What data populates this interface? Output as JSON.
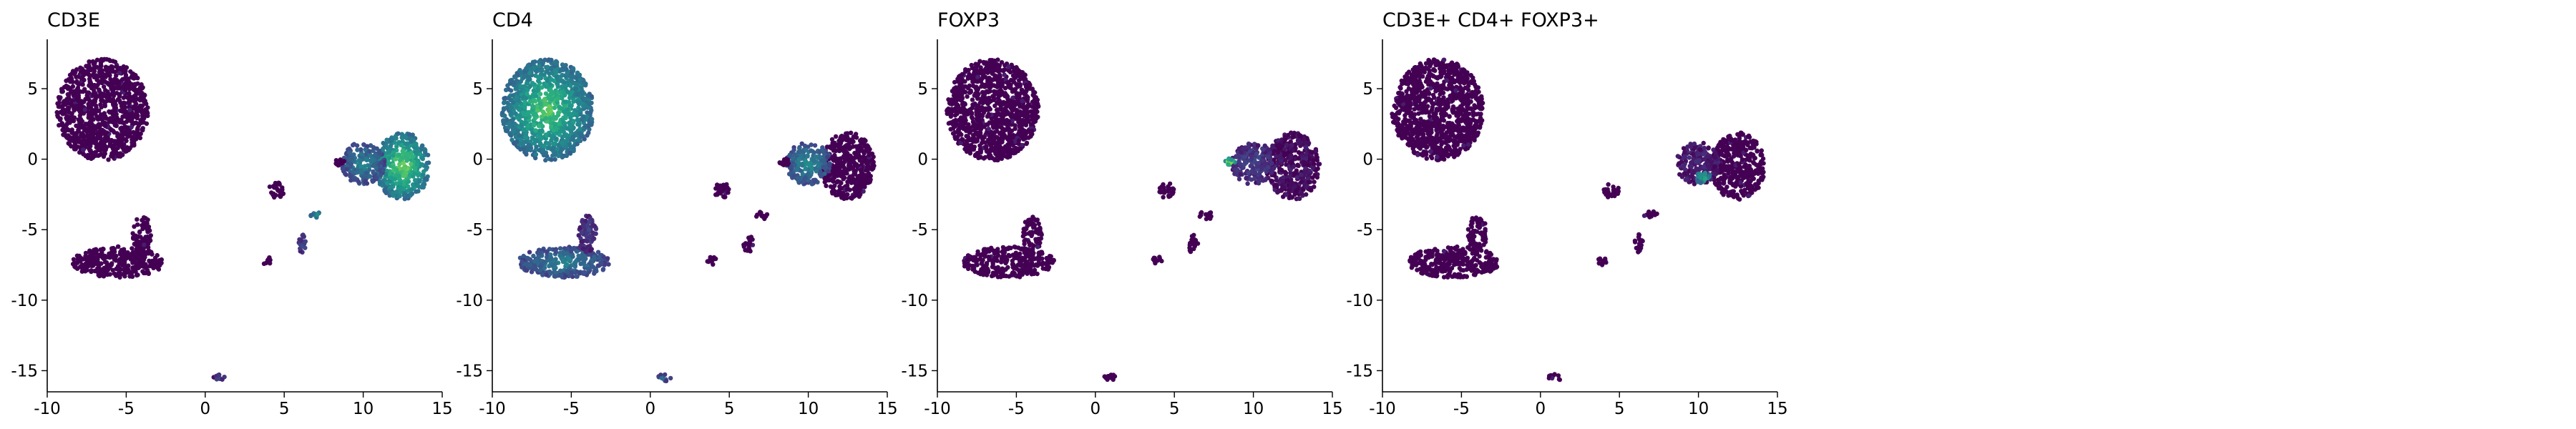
{
  "figure": {
    "panel_titles": [
      "CD3E",
      "CD4",
      "FOXP3",
      "CD3E+ CD4+ FOXP3+"
    ]
  },
  "chart_data": [
    {
      "type": "scatter",
      "title": "CD3E",
      "xlabel": "",
      "ylabel": "",
      "xlim": [
        -10,
        15
      ],
      "ylim": [
        -16.5,
        8.5
      ],
      "xticks": [
        -10,
        -5,
        0,
        5,
        10,
        15
      ],
      "yticks": [
        -15,
        -10,
        -5,
        0,
        5
      ],
      "colormap": "viridis",
      "grid": false,
      "clusters": [
        {
          "cx": -6.5,
          "cy": 3.5,
          "rx": 2.9,
          "ry": 3.6,
          "value": 0.0
        },
        {
          "cx": 12.5,
          "cy": -0.5,
          "rx": 1.7,
          "ry": 2.4,
          "value": 0.8
        },
        {
          "cx": 10.0,
          "cy": -0.3,
          "rx": 1.4,
          "ry": 1.5,
          "value": 0.45
        },
        {
          "cx": -5.5,
          "cy": -7.3,
          "rx": 2.9,
          "ry": 1.1,
          "value": 0.0
        },
        {
          "cx": -4.0,
          "cy": -5.3,
          "rx": 0.6,
          "ry": 1.3,
          "value": 0.0
        },
        {
          "cx": 4.5,
          "cy": -2.2,
          "rx": 0.5,
          "ry": 0.55,
          "value": 0.0
        },
        {
          "cx": 7.0,
          "cy": -4.0,
          "rx": 0.45,
          "ry": 0.3,
          "value": 0.55
        },
        {
          "cx": 6.2,
          "cy": -6.0,
          "rx": 0.3,
          "ry": 0.7,
          "value": 0.25
        },
        {
          "cx": 3.9,
          "cy": -7.2,
          "rx": 0.3,
          "ry": 0.3,
          "value": 0.0
        },
        {
          "cx": 8.5,
          "cy": -0.2,
          "rx": 0.35,
          "ry": 0.25,
          "value": 0.0
        },
        {
          "cx": 0.9,
          "cy": -15.5,
          "rx": 0.4,
          "ry": 0.25,
          "value": 0.2
        }
      ]
    },
    {
      "type": "scatter",
      "title": "CD4",
      "xlabel": "",
      "ylabel": "",
      "xlim": [
        -10,
        15
      ],
      "ylim": [
        -16.5,
        8.5
      ],
      "xticks": [
        -10,
        -5,
        0,
        5,
        10,
        15
      ],
      "yticks": [
        -15,
        -10,
        -5,
        0,
        5
      ],
      "colormap": "viridis",
      "grid": false,
      "clusters": [
        {
          "cx": -6.5,
          "cy": 3.5,
          "rx": 2.9,
          "ry": 3.6,
          "value": 0.75
        },
        {
          "cx": 12.5,
          "cy": -0.5,
          "rx": 1.7,
          "ry": 2.4,
          "value": 0.0
        },
        {
          "cx": 10.0,
          "cy": -0.3,
          "rx": 1.4,
          "ry": 1.5,
          "value": 0.5
        },
        {
          "cx": -5.5,
          "cy": -7.3,
          "rx": 2.9,
          "ry": 1.1,
          "value": 0.45
        },
        {
          "cx": -4.0,
          "cy": -5.3,
          "rx": 0.6,
          "ry": 1.3,
          "value": 0.2
        },
        {
          "cx": 4.5,
          "cy": -2.2,
          "rx": 0.5,
          "ry": 0.55,
          "value": 0.0
        },
        {
          "cx": 7.0,
          "cy": -4.0,
          "rx": 0.45,
          "ry": 0.3,
          "value": 0.0
        },
        {
          "cx": 6.2,
          "cy": -6.0,
          "rx": 0.3,
          "ry": 0.7,
          "value": 0.0
        },
        {
          "cx": 3.9,
          "cy": -7.2,
          "rx": 0.3,
          "ry": 0.3,
          "value": 0.0
        },
        {
          "cx": 8.5,
          "cy": -0.2,
          "rx": 0.35,
          "ry": 0.25,
          "value": 0.0
        },
        {
          "cx": 0.9,
          "cy": -15.5,
          "rx": 0.4,
          "ry": 0.25,
          "value": 0.4
        }
      ]
    },
    {
      "type": "scatter",
      "title": "FOXP3",
      "xlabel": "",
      "ylabel": "",
      "xlim": [
        -10,
        15
      ],
      "ylim": [
        -16.5,
        8.5
      ],
      "xticks": [
        -10,
        -5,
        0,
        5,
        10,
        15
      ],
      "yticks": [
        -15,
        -10,
        -5,
        0,
        5
      ],
      "colormap": "viridis",
      "grid": false,
      "clusters": [
        {
          "cx": -6.5,
          "cy": 3.5,
          "rx": 2.9,
          "ry": 3.6,
          "value": 0.0
        },
        {
          "cx": 12.5,
          "cy": -0.5,
          "rx": 1.7,
          "ry": 2.4,
          "value": 0.05
        },
        {
          "cx": 10.0,
          "cy": -0.3,
          "rx": 1.4,
          "ry": 1.5,
          "value": 0.2
        },
        {
          "cx": -5.5,
          "cy": -7.3,
          "rx": 2.9,
          "ry": 1.1,
          "value": 0.0
        },
        {
          "cx": -4.0,
          "cy": -5.3,
          "rx": 0.6,
          "ry": 1.3,
          "value": 0.0
        },
        {
          "cx": 4.5,
          "cy": -2.2,
          "rx": 0.5,
          "ry": 0.55,
          "value": 0.0
        },
        {
          "cx": 7.0,
          "cy": -4.0,
          "rx": 0.45,
          "ry": 0.3,
          "value": 0.0
        },
        {
          "cx": 6.2,
          "cy": -6.0,
          "rx": 0.3,
          "ry": 0.7,
          "value": 0.0
        },
        {
          "cx": 3.9,
          "cy": -7.2,
          "rx": 0.3,
          "ry": 0.3,
          "value": 0.0
        },
        {
          "cx": 8.5,
          "cy": -0.2,
          "rx": 0.35,
          "ry": 0.25,
          "value": 0.95
        },
        {
          "cx": 0.9,
          "cy": -15.5,
          "rx": 0.4,
          "ry": 0.25,
          "value": 0.0
        }
      ]
    },
    {
      "type": "scatter",
      "title": "CD3E+ CD4+ FOXP3+",
      "xlabel": "",
      "ylabel": "",
      "xlim": [
        -10,
        15
      ],
      "ylim": [
        -16.5,
        8.5
      ],
      "xticks": [
        -10,
        -5,
        0,
        5,
        10,
        15
      ],
      "yticks": [
        -15,
        -10,
        -5,
        0,
        5
      ],
      "colormap": "viridis",
      "grid": false,
      "clusters": [
        {
          "cx": -6.5,
          "cy": 3.5,
          "rx": 2.9,
          "ry": 3.6,
          "value": 0.0
        },
        {
          "cx": 12.5,
          "cy": -0.5,
          "rx": 1.7,
          "ry": 2.4,
          "value": 0.0
        },
        {
          "cx": 10.0,
          "cy": -0.3,
          "rx": 1.4,
          "ry": 1.5,
          "value": 0.1
        },
        {
          "cx": 10.3,
          "cy": -1.3,
          "rx": 0.5,
          "ry": 0.45,
          "value": 0.7
        },
        {
          "cx": -5.5,
          "cy": -7.3,
          "rx": 2.9,
          "ry": 1.1,
          "value": 0.0
        },
        {
          "cx": -4.0,
          "cy": -5.3,
          "rx": 0.6,
          "ry": 1.3,
          "value": 0.0
        },
        {
          "cx": 4.5,
          "cy": -2.2,
          "rx": 0.5,
          "ry": 0.55,
          "value": 0.0
        },
        {
          "cx": 7.0,
          "cy": -4.0,
          "rx": 0.45,
          "ry": 0.3,
          "value": 0.0
        },
        {
          "cx": 6.2,
          "cy": -6.0,
          "rx": 0.3,
          "ry": 0.7,
          "value": 0.0
        },
        {
          "cx": 3.9,
          "cy": -7.2,
          "rx": 0.3,
          "ry": 0.3,
          "value": 0.0
        },
        {
          "cx": 0.9,
          "cy": -15.5,
          "rx": 0.4,
          "ry": 0.25,
          "value": 0.0
        }
      ]
    }
  ]
}
